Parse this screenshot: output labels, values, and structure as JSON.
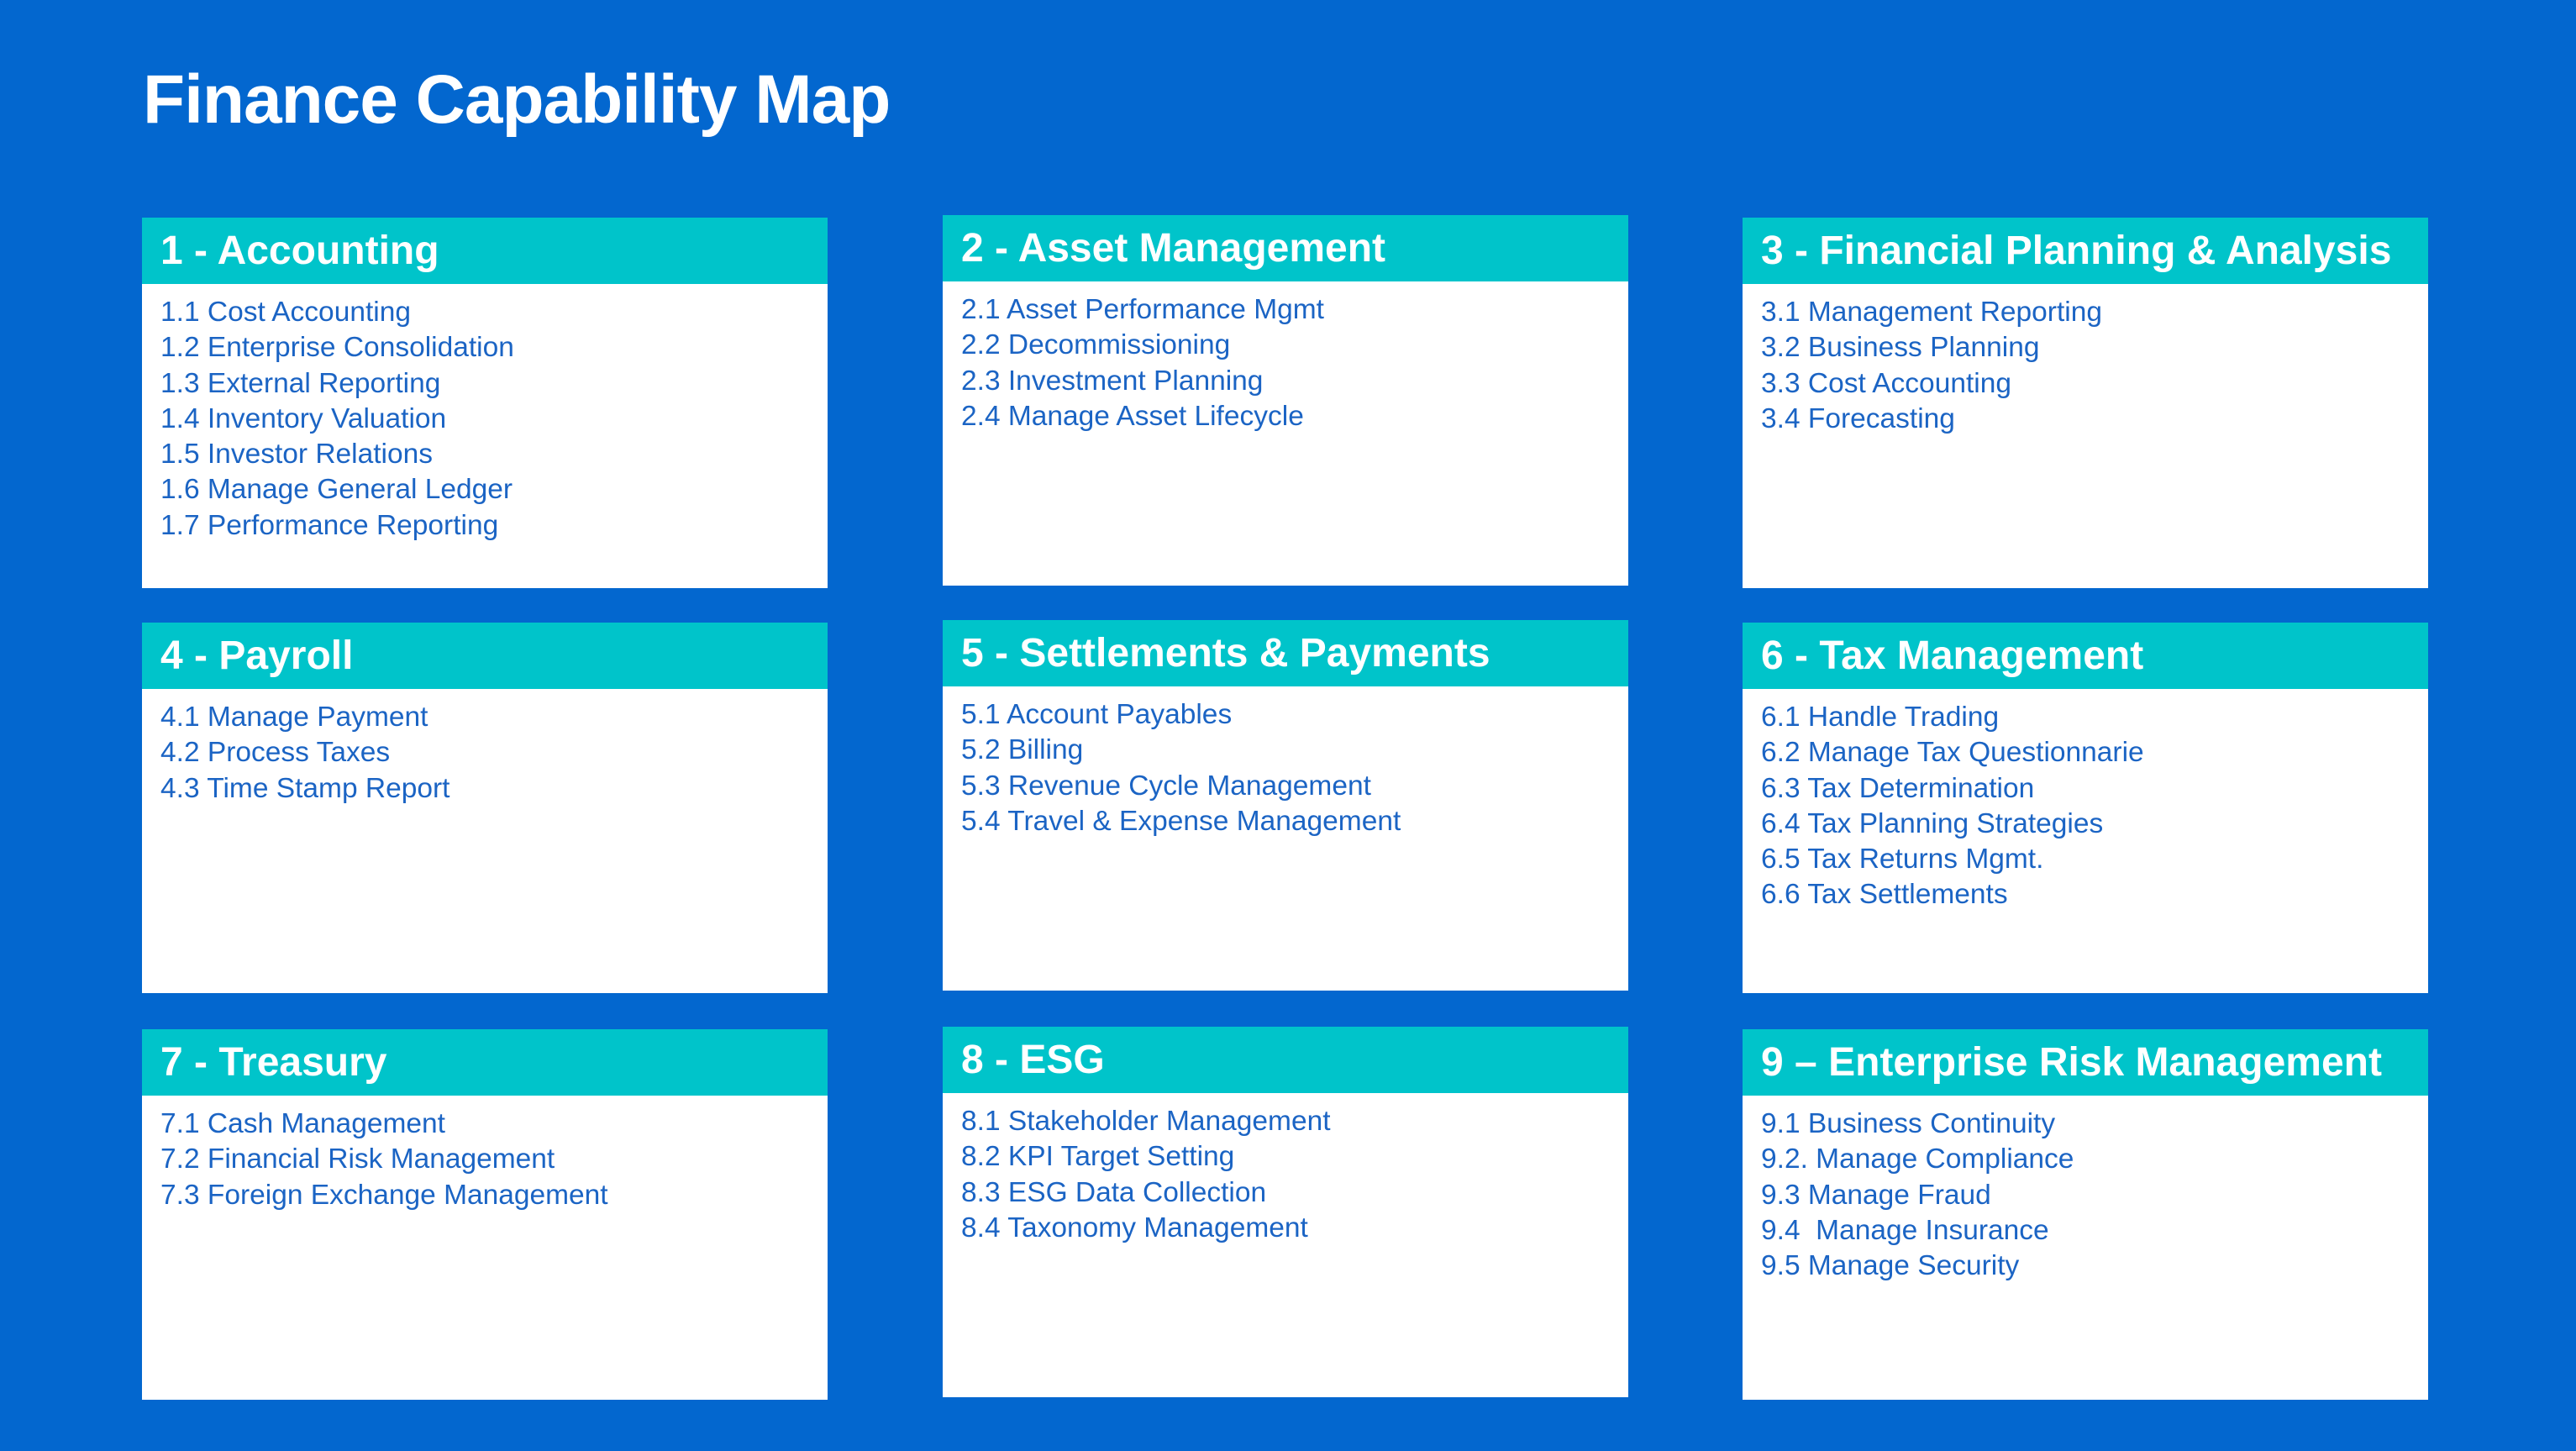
{
  "title": "Finance Capability Map",
  "colors": {
    "background": "#0367CF",
    "header": "#00C4CA",
    "card": "#FFFFFF",
    "item_text": "#1B64C4",
    "title_text": "#FFFFFF"
  },
  "capabilities": [
    {
      "title": "1 - Accounting",
      "items": [
        "1.1 Cost Accounting",
        "1.2 Enterprise Consolidation",
        "1.3 External Reporting",
        "1.4 Inventory Valuation",
        "1.5 Investor Relations",
        "1.6 Manage General Ledger",
        "1.7 Performance Reporting"
      ]
    },
    {
      "title": "2 - Asset Management",
      "items": [
        "2.1 Asset Performance Mgmt",
        "2.2 Decommissioning",
        "2.3 Investment Planning",
        "2.4 Manage Asset Lifecycle"
      ]
    },
    {
      "title": "3 - Financial Planning & Analysis",
      "items": [
        "3.1 Management Reporting",
        "3.2 Business Planning",
        "3.3 Cost Accounting",
        "3.4 Forecasting"
      ]
    },
    {
      "title": "4 - Payroll",
      "items": [
        "4.1 Manage Payment",
        "4.2 Process Taxes",
        "4.3 Time Stamp Report"
      ]
    },
    {
      "title": "5 - Settlements & Payments",
      "items": [
        "5.1 Account Payables",
        "5.2 Billing",
        "5.3 Revenue Cycle Management",
        "5.4 Travel & Expense Management"
      ]
    },
    {
      "title": "6 - Tax Management",
      "items": [
        "6.1 Handle Trading",
        "6.2 Manage Tax Questionnarie",
        "6.3 Tax Determination",
        "6.4 Tax Planning Strategies",
        "6.5 Tax Returns Mgmt.",
        "6.6 Tax Settlements"
      ]
    },
    {
      "title": "7 - Treasury",
      "items": [
        "7.1 Cash Management",
        "7.2 Financial Risk Management",
        "7.3 Foreign Exchange Management"
      ]
    },
    {
      "title": "8 - ESG",
      "items": [
        "8.1 Stakeholder Management",
        "8.2 KPI Target Setting",
        "8.3 ESG Data Collection",
        "8.4 Taxonomy Management"
      ]
    },
    {
      "title": "9 – Enterprise Risk Management",
      "items": [
        "9.1 Business Continuity",
        "9.2. Manage Compliance",
        "9.3 Manage Fraud",
        "9.4  Manage Insurance",
        "9.5 Manage Security"
      ]
    }
  ]
}
